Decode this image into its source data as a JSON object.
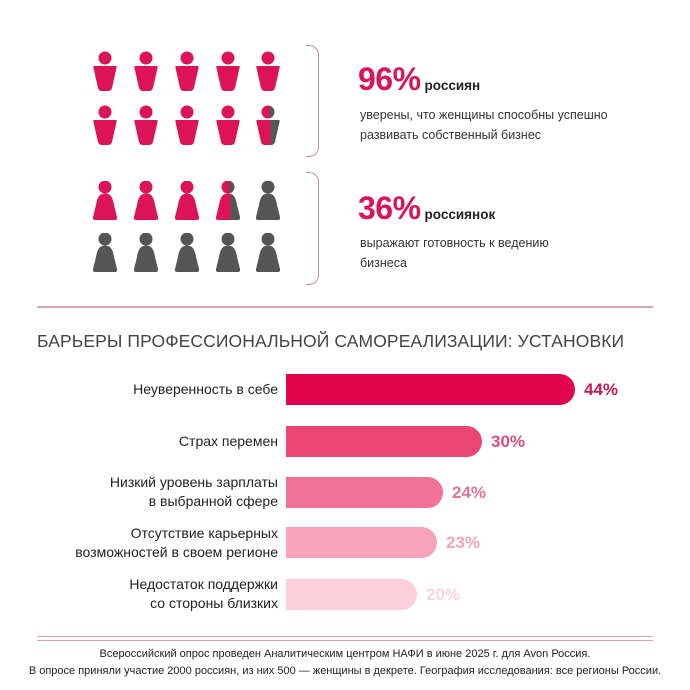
{
  "colors": {
    "accent": "#dc1356",
    "gray": "#555555",
    "bracket": "#c98a9c",
    "divider": "#d9a3b2"
  },
  "stat1": {
    "value": "96%",
    "subject": "россиян",
    "description_line1": "уверены, что женщины способны успешно",
    "description_line2": "развивать собственный бизнес",
    "icon": "male-figure-icon",
    "figures_total": 10,
    "figures_filled": 9.6
  },
  "stat2": {
    "value": "36%",
    "subject": "россиянок",
    "description_line1": "выражают готовность к ведению",
    "description_line2": "бизнеса",
    "icon": "female-figure-icon",
    "figures_total": 10,
    "figures_filled": 3.6
  },
  "barriers": {
    "title": "БАРЬЕРЫ ПРОФЕССИОНАЛЬНОЙ САМОРЕАЛИЗАЦИИ: УСТАНОВКИ",
    "items": [
      {
        "label_line1": "Неуверенность в себе",
        "label_line2": "",
        "value": "44%",
        "color": "#e0054d",
        "text_color": "#c81a55"
      },
      {
        "label_line1": "Страх перемен",
        "label_line2": "",
        "value": "30%",
        "color": "#ea4573",
        "text_color": "#d9507a"
      },
      {
        "label_line1": "Низкий уровень зарплаты",
        "label_line2": "в выбранной сфере",
        "value": "24%",
        "color": "#f27296",
        "text_color": "#e07399"
      },
      {
        "label_line1": "Отсутствие карьерных",
        "label_line2": "возможностей в своем регионе",
        "value": "23%",
        "color": "#f7a4b9",
        "text_color": "#f0a4b8"
      },
      {
        "label_line1": "Недостаток поддержки",
        "label_line2": "со стороны близких",
        "value": "20%",
        "color": "#fbd0dc",
        "text_color": "#f8d4de"
      }
    ]
  },
  "chart_data": [
    {
      "type": "pictogram",
      "title": "96% россиян",
      "subtitle": "уверены, что женщины способны успешно развивать собственный бизнес",
      "values": [
        96
      ],
      "total_icons": 10
    },
    {
      "type": "pictogram",
      "title": "36% россиянок",
      "subtitle": "выражают готовность к ведению бизнеса",
      "values": [
        36
      ],
      "total_icons": 10
    },
    {
      "type": "bar",
      "orientation": "horizontal",
      "title": "БАРЬЕРЫ ПРОФЕССИОНАЛЬНОЙ САМОРЕАЛИЗАЦИИ: УСТАНОВКИ",
      "categories": [
        "Неуверенность в себе",
        "Страх перемен",
        "Низкий уровень зарплаты в выбранной сфере",
        "Отсутствие карьерных возможностей в своем регионе",
        "Недостаток поддержки со стороны близких"
      ],
      "values": [
        44,
        30,
        24,
        23,
        20
      ],
      "unit": "%",
      "xlabel": "",
      "ylabel": "",
      "grid": false,
      "legend": "none"
    }
  ],
  "footer": {
    "line1": "Всероссийский опрос проведен Аналитическим центром НАФИ в июне 2025 г. для Avon Россия.",
    "line2": "В опросе приняли участие 2000 россиян, из них 500 — женщины в декрете. География исследования: все регионы России."
  }
}
